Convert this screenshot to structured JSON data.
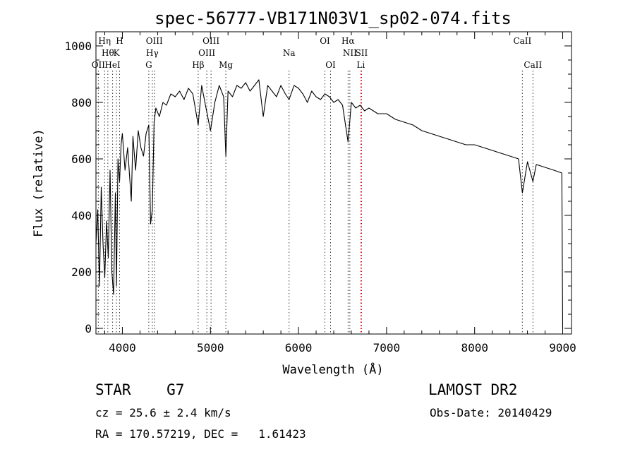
{
  "chart_data": {
    "type": "line",
    "title": "spec-56777-VB171N03V1_sp02-074.fits",
    "xlabel": "Wavelength (Å)",
    "ylabel": "Flux (relative)",
    "xlim": [
      3700,
      9100
    ],
    "ylim": [
      -20,
      1050
    ],
    "xticks": [
      4000,
      5000,
      6000,
      7000,
      8000,
      9000
    ],
    "yticks": [
      0,
      200,
      400,
      600,
      800,
      1000
    ],
    "grid": false,
    "legend": "none",
    "line_color": "#000000",
    "series": [
      {
        "x": [
          3700,
          3720,
          3740,
          3760,
          3780,
          3800,
          3820,
          3840,
          3860,
          3880,
          3900,
          3920,
          3933,
          3950,
          3968,
          3985,
          4000,
          4030,
          4060,
          4101,
          4120,
          4150,
          4180,
          4210,
          4240,
          4270,
          4300,
          4320,
          4340,
          4360,
          4380,
          4420,
          4460,
          4500,
          4550,
          4600,
          4650,
          4700,
          4750,
          4800,
          4861,
          4900,
          4950,
          5000,
          5050,
          5100,
          5150,
          5175,
          5200,
          5250,
          5300,
          5350,
          5400,
          5450,
          5500,
          5550,
          5600,
          5650,
          5700,
          5750,
          5800,
          5850,
          5893,
          5950,
          6000,
          6050,
          6100,
          6150,
          6200,
          6250,
          6300,
          6350,
          6400,
          6450,
          6500,
          6563,
          6600,
          6650,
          6700,
          6750,
          6800,
          6850,
          6900,
          6950,
          7000,
          7100,
          7200,
          7300,
          7400,
          7500,
          7600,
          7700,
          7800,
          7900,
          8000,
          8100,
          8200,
          8300,
          8400,
          8498,
          8542,
          8600,
          8662,
          8700,
          8800,
          8900,
          8990,
          9000
        ],
        "y": [
          300,
          420,
          150,
          500,
          300,
          180,
          380,
          250,
          560,
          200,
          120,
          480,
          150,
          600,
          520,
          650,
          690,
          560,
          640,
          450,
          680,
          560,
          700,
          640,
          610,
          690,
          720,
          370,
          420,
          730,
          780,
          750,
          800,
          790,
          830,
          820,
          840,
          810,
          850,
          830,
          720,
          860,
          780,
          700,
          800,
          860,
          820,
          610,
          840,
          820,
          860,
          850,
          870,
          840,
          860,
          880,
          750,
          860,
          840,
          820,
          860,
          830,
          810,
          860,
          850,
          830,
          800,
          840,
          820,
          810,
          830,
          820,
          800,
          810,
          790,
          660,
          800,
          780,
          790,
          770,
          780,
          770,
          760,
          760,
          760,
          740,
          730,
          720,
          700,
          690,
          680,
          670,
          660,
          650,
          650,
          640,
          630,
          620,
          610,
          600,
          480,
          590,
          520,
          580,
          570,
          560,
          550,
          0
        ]
      }
    ],
    "line_markers": [
      {
        "x": 3727,
        "label": "OII",
        "row": 3,
        "color": "#333333"
      },
      {
        "x": 3798,
        "label": "Hη",
        "row": 1,
        "color": "#333333"
      },
      {
        "x": 3835,
        "label": "Hθ",
        "row": 2,
        "color": "#333333"
      },
      {
        "x": 3889,
        "label": "HeI",
        "row": 3,
        "color": "#333333"
      },
      {
        "x": 3933,
        "label": "K",
        "row": 2,
        "color": "#333333"
      },
      {
        "x": 3968,
        "label": "H",
        "row": 1,
        "color": "#333333"
      },
      {
        "x": 4300,
        "label": "G",
        "row": 3,
        "color": "#333333"
      },
      {
        "x": 4340,
        "label": "Hγ",
        "row": 2,
        "color": "#333333"
      },
      {
        "x": 4363,
        "label": "OIII",
        "row": 1,
        "color": "#333333"
      },
      {
        "x": 4861,
        "label": "Hβ",
        "row": 3,
        "color": "#333333"
      },
      {
        "x": 4959,
        "label": "OIII",
        "row": 2,
        "color": "#333333"
      },
      {
        "x": 5007,
        "label": "OIII",
        "row": 1,
        "color": "#333333"
      },
      {
        "x": 5175,
        "label": "Mg",
        "row": 3,
        "color": "#333333"
      },
      {
        "x": 5893,
        "label": "Na",
        "row": 2,
        "color": "#333333"
      },
      {
        "x": 6300,
        "label": "OI",
        "row": 1,
        "color": "#333333"
      },
      {
        "x": 6364,
        "label": "OI",
        "row": 3,
        "color": "#333333"
      },
      {
        "x": 6563,
        "label": "Hα",
        "row": 1,
        "color": "#333333"
      },
      {
        "x": 6583,
        "label": "NII",
        "row": 2,
        "color": "#333333"
      },
      {
        "x": 6716,
        "label": "SII",
        "row": 2,
        "color": "#cc0000"
      },
      {
        "x": 6708,
        "label": "Li",
        "row": 3,
        "color": "#cc0000"
      },
      {
        "x": 8542,
        "label": "CaII",
        "row": 1,
        "color": "#333333"
      },
      {
        "x": 8662,
        "label": "CaII",
        "row": 3,
        "color": "#333333"
      }
    ]
  },
  "info": {
    "object_class": "STAR    G7",
    "survey": "LAMOST DR2",
    "cz": "cz = 25.6 ± 2.4 km/s",
    "obs_date": "Obs-Date: 20140429",
    "ra_dec": "RA = 170.57219, DEC =   1.61423"
  }
}
